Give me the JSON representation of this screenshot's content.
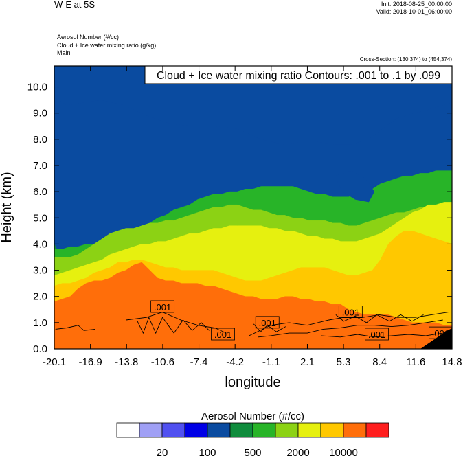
{
  "header": {
    "title": "W-E at 5S",
    "init": "Init: 2018-08-25_00:00:00",
    "valid": "Valid: 2018-10-01_06:00:00",
    "fields": [
      "Aerosol Number   (#/cc)",
      "Cloud + Ice water mixing ratio   (g/kg)",
      "Main"
    ],
    "cross_section": "Cross-Section: (130,374) to (454,374)"
  },
  "chart_data": {
    "type": "heatmap",
    "title": "",
    "xlabel": "longitude",
    "ylabel": "Height (km)",
    "xlim": [
      -20.1,
      14.8
    ],
    "ylim": [
      0.0,
      10.8
    ],
    "grid": false,
    "x_ticks": [
      "-20.1",
      "-16.9",
      "-13.8",
      "-10.6",
      "-7.4",
      "-4.2",
      "-1.1",
      "2.1",
      "5.3",
      "8.4",
      "11.6",
      "14.8"
    ],
    "y_ticks": [
      "0.0",
      "1.0",
      "2.0",
      "3.0",
      "4.0",
      "5.0",
      "6.0",
      "7.0",
      "8.0",
      "9.0",
      "10.0"
    ],
    "contour_info": "Cloud + Ice water mixing ratio Contours: .001 to .1 by .099",
    "contour_labels": [
      {
        "text": ".001",
        "x": -10.6,
        "y": 1.6
      },
      {
        "text": ".001",
        "x": -1.4,
        "y": 1.0
      },
      {
        "text": ".001",
        "x": -5.3,
        "y": 0.55
      },
      {
        "text": ".001",
        "x": 5.9,
        "y": 1.4
      },
      {
        "text": ".001",
        "x": 8.2,
        "y": 0.55
      },
      {
        "text": ".001",
        "x": 13.8,
        "y": 0.6
      }
    ],
    "colorbar": {
      "title": "Aerosol Number  (#/cc)",
      "colors": [
        "#ffffff",
        "#a0a0f5",
        "#5050f0",
        "#0000e6",
        "#0a4ba0",
        "#0f8c3c",
        "#28b428",
        "#8cd214",
        "#e6f00f",
        "#ffc800",
        "#ff6e0a",
        "#ff1e1e"
      ],
      "tick_labels": [
        "20",
        "100",
        "500",
        "2000",
        "10000"
      ]
    },
    "bands": [
      {
        "class": 5,
        "level": [
          4.0,
          3.4,
          3.3,
          3.3,
          3.3,
          3.2,
          3.4,
          3.5,
          3.6,
          3.6,
          3.8,
          4.0,
          4.2,
          4.3,
          4.5,
          4.7,
          4.9,
          5.1,
          5.2,
          5.4,
          5.5,
          5.5,
          5.6,
          5.6,
          5.7,
          5.7,
          5.6,
          5.6,
          5.5,
          5.5,
          5.4,
          5.3,
          5.2,
          5.1,
          5.0,
          4.9,
          4.8,
          4.7,
          4.7,
          4.8,
          5.0,
          5.2,
          5.3,
          5.5,
          5.6,
          5.8,
          5.9,
          6.0,
          6.0,
          6.1,
          6.1
        ]
      },
      {
        "class": 6,
        "level": [
          3.8,
          3.8,
          3.9,
          3.9,
          4.0,
          4.0,
          4.1,
          4.2,
          4.3,
          4.4,
          4.6,
          4.7,
          4.8,
          5.0,
          5.1,
          5.3,
          5.4,
          5.5,
          5.7,
          5.8,
          5.9,
          5.9,
          6.0,
          6.0,
          6.1,
          6.1,
          6.2,
          6.2,
          6.2,
          6.2,
          6.2,
          6.1,
          6.0,
          5.9,
          5.9,
          5.8,
          5.8,
          5.8,
          5.9,
          6.0,
          6.1,
          6.3,
          6.4,
          6.5,
          6.6,
          6.6,
          6.7,
          6.7,
          6.8,
          6.8,
          6.8
        ]
      },
      {
        "class": 7,
        "level": [
          3.5,
          3.5,
          3.5,
          3.6,
          3.8,
          4.0,
          4.2,
          4.4,
          4.5,
          4.6,
          4.6,
          4.7,
          4.8,
          4.8,
          4.9,
          4.9,
          5.0,
          5.1,
          5.2,
          5.3,
          5.4,
          5.4,
          5.5,
          5.5,
          5.4,
          5.3,
          5.3,
          5.2,
          5.1,
          5.1,
          5.0,
          5.0,
          4.9,
          4.9,
          4.9,
          4.8,
          4.8,
          4.7,
          4.7,
          4.8,
          4.9,
          5.0,
          5.1,
          5.2,
          5.2,
          5.3,
          5.4,
          5.4,
          5.5,
          5.5,
          5.5
        ]
      },
      {
        "class": 8,
        "level": [
          2.8,
          2.9,
          3.0,
          3.1,
          3.2,
          3.3,
          3.4,
          3.6,
          3.7,
          3.8,
          3.9,
          4.0,
          4.0,
          4.1,
          4.1,
          4.2,
          4.3,
          4.4,
          4.4,
          4.5,
          4.6,
          4.6,
          4.7,
          4.7,
          4.7,
          4.7,
          4.7,
          4.6,
          4.6,
          4.5,
          4.5,
          4.4,
          4.3,
          4.3,
          4.2,
          4.2,
          4.1,
          4.1,
          4.1,
          4.2,
          4.3,
          4.4,
          4.6,
          4.8,
          5.0,
          5.2,
          5.3,
          5.5,
          5.5,
          5.6,
          5.6
        ]
      },
      {
        "class": 9,
        "level": [
          2.4,
          2.5,
          2.5,
          2.6,
          2.7,
          2.9,
          3.0,
          3.1,
          3.3,
          3.3,
          3.4,
          3.4,
          3.3,
          3.2,
          3.1,
          3.1,
          3.0,
          3.0,
          3.0,
          3.0,
          3.0,
          2.9,
          2.8,
          2.7,
          2.6,
          2.6,
          2.6,
          2.7,
          2.8,
          2.9,
          3.0,
          3.1,
          3.1,
          3.1,
          3.1,
          3.0,
          2.9,
          2.8,
          2.8,
          2.9,
          3.0,
          3.4,
          4.0,
          4.3,
          4.5,
          4.5,
          4.4,
          4.3,
          4.2,
          4.1,
          4.0
        ]
      },
      {
        "class": 10,
        "level": [
          1.8,
          1.9,
          2.0,
          2.3,
          2.5,
          2.6,
          2.6,
          2.7,
          2.9,
          3.0,
          3.2,
          3.3,
          3.0,
          2.7,
          2.6,
          2.6,
          2.5,
          2.5,
          2.5,
          2.4,
          2.4,
          2.3,
          2.2,
          2.1,
          2.0,
          2.0,
          1.9,
          1.9,
          1.9,
          2.0,
          2.0,
          1.9,
          1.9,
          1.8,
          1.8,
          1.7,
          1.7,
          1.5,
          1.4,
          1.3,
          1.3,
          1.3,
          1.3,
          1.2,
          1.1,
          1.0,
          1.0,
          1.0,
          1.0,
          0.9,
          0.9
        ]
      }
    ],
    "high_cloud": [
      {
        "class": 4,
        "points": [
          [
            -20.1,
            10.8
          ],
          [
            -20.1,
            9.6
          ],
          [
            -19.0,
            9.3
          ],
          [
            -17.5,
            9.4
          ],
          [
            -16.0,
            9.5
          ],
          [
            -14.0,
            9.3
          ],
          [
            -12.0,
            8.9
          ],
          [
            -10.0,
            8.6
          ],
          [
            -8.0,
            8.5
          ],
          [
            -6.0,
            8.5
          ],
          [
            -4.0,
            8.4
          ],
          [
            -2.0,
            8.0
          ],
          [
            0.0,
            7.8
          ],
          [
            1.5,
            7.9
          ],
          [
            3.0,
            7.9
          ],
          [
            4.5,
            7.8
          ],
          [
            6.0,
            7.8
          ],
          [
            7.5,
            8.0
          ],
          [
            9.0,
            8.5
          ],
          [
            10.0,
            8.8
          ],
          [
            11.5,
            9.0
          ],
          [
            12.5,
            9.1
          ],
          [
            14.0,
            9.3
          ],
          [
            14.8,
            9.4
          ],
          [
            14.8,
            10.8
          ]
        ]
      },
      {
        "class": 4,
        "points": [
          [
            4.5,
            6.6
          ],
          [
            6.0,
            6.8
          ],
          [
            7.2,
            6.5
          ],
          [
            8.0,
            6.0
          ],
          [
            7.5,
            5.6
          ],
          [
            6.3,
            5.7
          ],
          [
            5.2,
            6.0
          ]
        ]
      },
      {
        "class": 3,
        "points": [
          [
            7.0,
            10.8
          ],
          [
            8.0,
            10.3
          ],
          [
            9.0,
            10.2
          ],
          [
            9.3,
            10.8
          ]
        ]
      }
    ],
    "contours": [
      [
        [
          -13.8,
          1.1
        ],
        [
          -12.0,
          1.2
        ],
        [
          -10.6,
          1.4
        ],
        [
          -9.0,
          1.1
        ],
        [
          -7.5,
          0.9
        ],
        [
          -6.0,
          0.8
        ],
        [
          -5.0,
          0.6
        ]
      ],
      [
        [
          -3.0,
          0.5
        ],
        [
          -1.1,
          0.9
        ],
        [
          0.5,
          1.0
        ],
        [
          2.1,
          0.9
        ],
        [
          4.0,
          1.1
        ],
        [
          5.3,
          1.2
        ],
        [
          7.0,
          1.2
        ],
        [
          8.4,
          1.3
        ],
        [
          10.0,
          1.2
        ],
        [
          11.6,
          1.2
        ],
        [
          13.0,
          1.3
        ],
        [
          14.5,
          1.4
        ]
      ],
      [
        [
          -2.2,
          0.45
        ],
        [
          -1.1,
          0.5
        ],
        [
          0.5,
          0.6
        ],
        [
          2.1,
          0.6
        ],
        [
          3.5,
          0.75
        ],
        [
          5.0,
          0.8
        ],
        [
          6.5,
          0.9
        ],
        [
          8.0,
          0.9
        ],
        [
          9.5,
          0.85
        ],
        [
          11.0,
          0.9
        ],
        [
          12.5,
          1.0
        ],
        [
          14.0,
          1.1
        ]
      ],
      [
        [
          3.3,
          0.5
        ],
        [
          5.0,
          0.45
        ],
        [
          6.5,
          0.55
        ],
        [
          8.0,
          0.45
        ],
        [
          9.5,
          0.5
        ],
        [
          11.0,
          0.55
        ],
        [
          12.5,
          0.5
        ],
        [
          14.0,
          0.6
        ]
      ],
      [
        [
          -20.0,
          0.75
        ],
        [
          -19.0,
          0.8
        ],
        [
          -18.0,
          0.9
        ],
        [
          -17.5,
          0.7
        ],
        [
          -16.5,
          0.75
        ]
      ],
      [
        [
          -12.8,
          1.05
        ],
        [
          -12.3,
          0.6
        ],
        [
          -11.8,
          1.2
        ],
        [
          -11.2,
          0.6
        ],
        [
          -10.6,
          1.2
        ],
        [
          -9.6,
          0.6
        ],
        [
          -8.8,
          1.1
        ],
        [
          -8.0,
          0.7
        ],
        [
          -7.2,
          1.0
        ],
        [
          -6.5,
          0.7
        ]
      ],
      [
        [
          -2.6,
          0.95
        ],
        [
          -2.0,
          0.65
        ],
        [
          -1.4,
          0.9
        ],
        [
          -0.6,
          0.65
        ],
        [
          0.2,
          0.85
        ]
      ],
      [
        [
          4.6,
          1.3
        ],
        [
          5.3,
          1.05
        ],
        [
          6.3,
          1.25
        ],
        [
          7.3,
          1.0
        ],
        [
          8.2,
          1.3
        ],
        [
          9.3,
          1.05
        ],
        [
          10.3,
          1.3
        ],
        [
          11.3,
          1.05
        ],
        [
          12.3,
          1.3
        ]
      ]
    ]
  }
}
